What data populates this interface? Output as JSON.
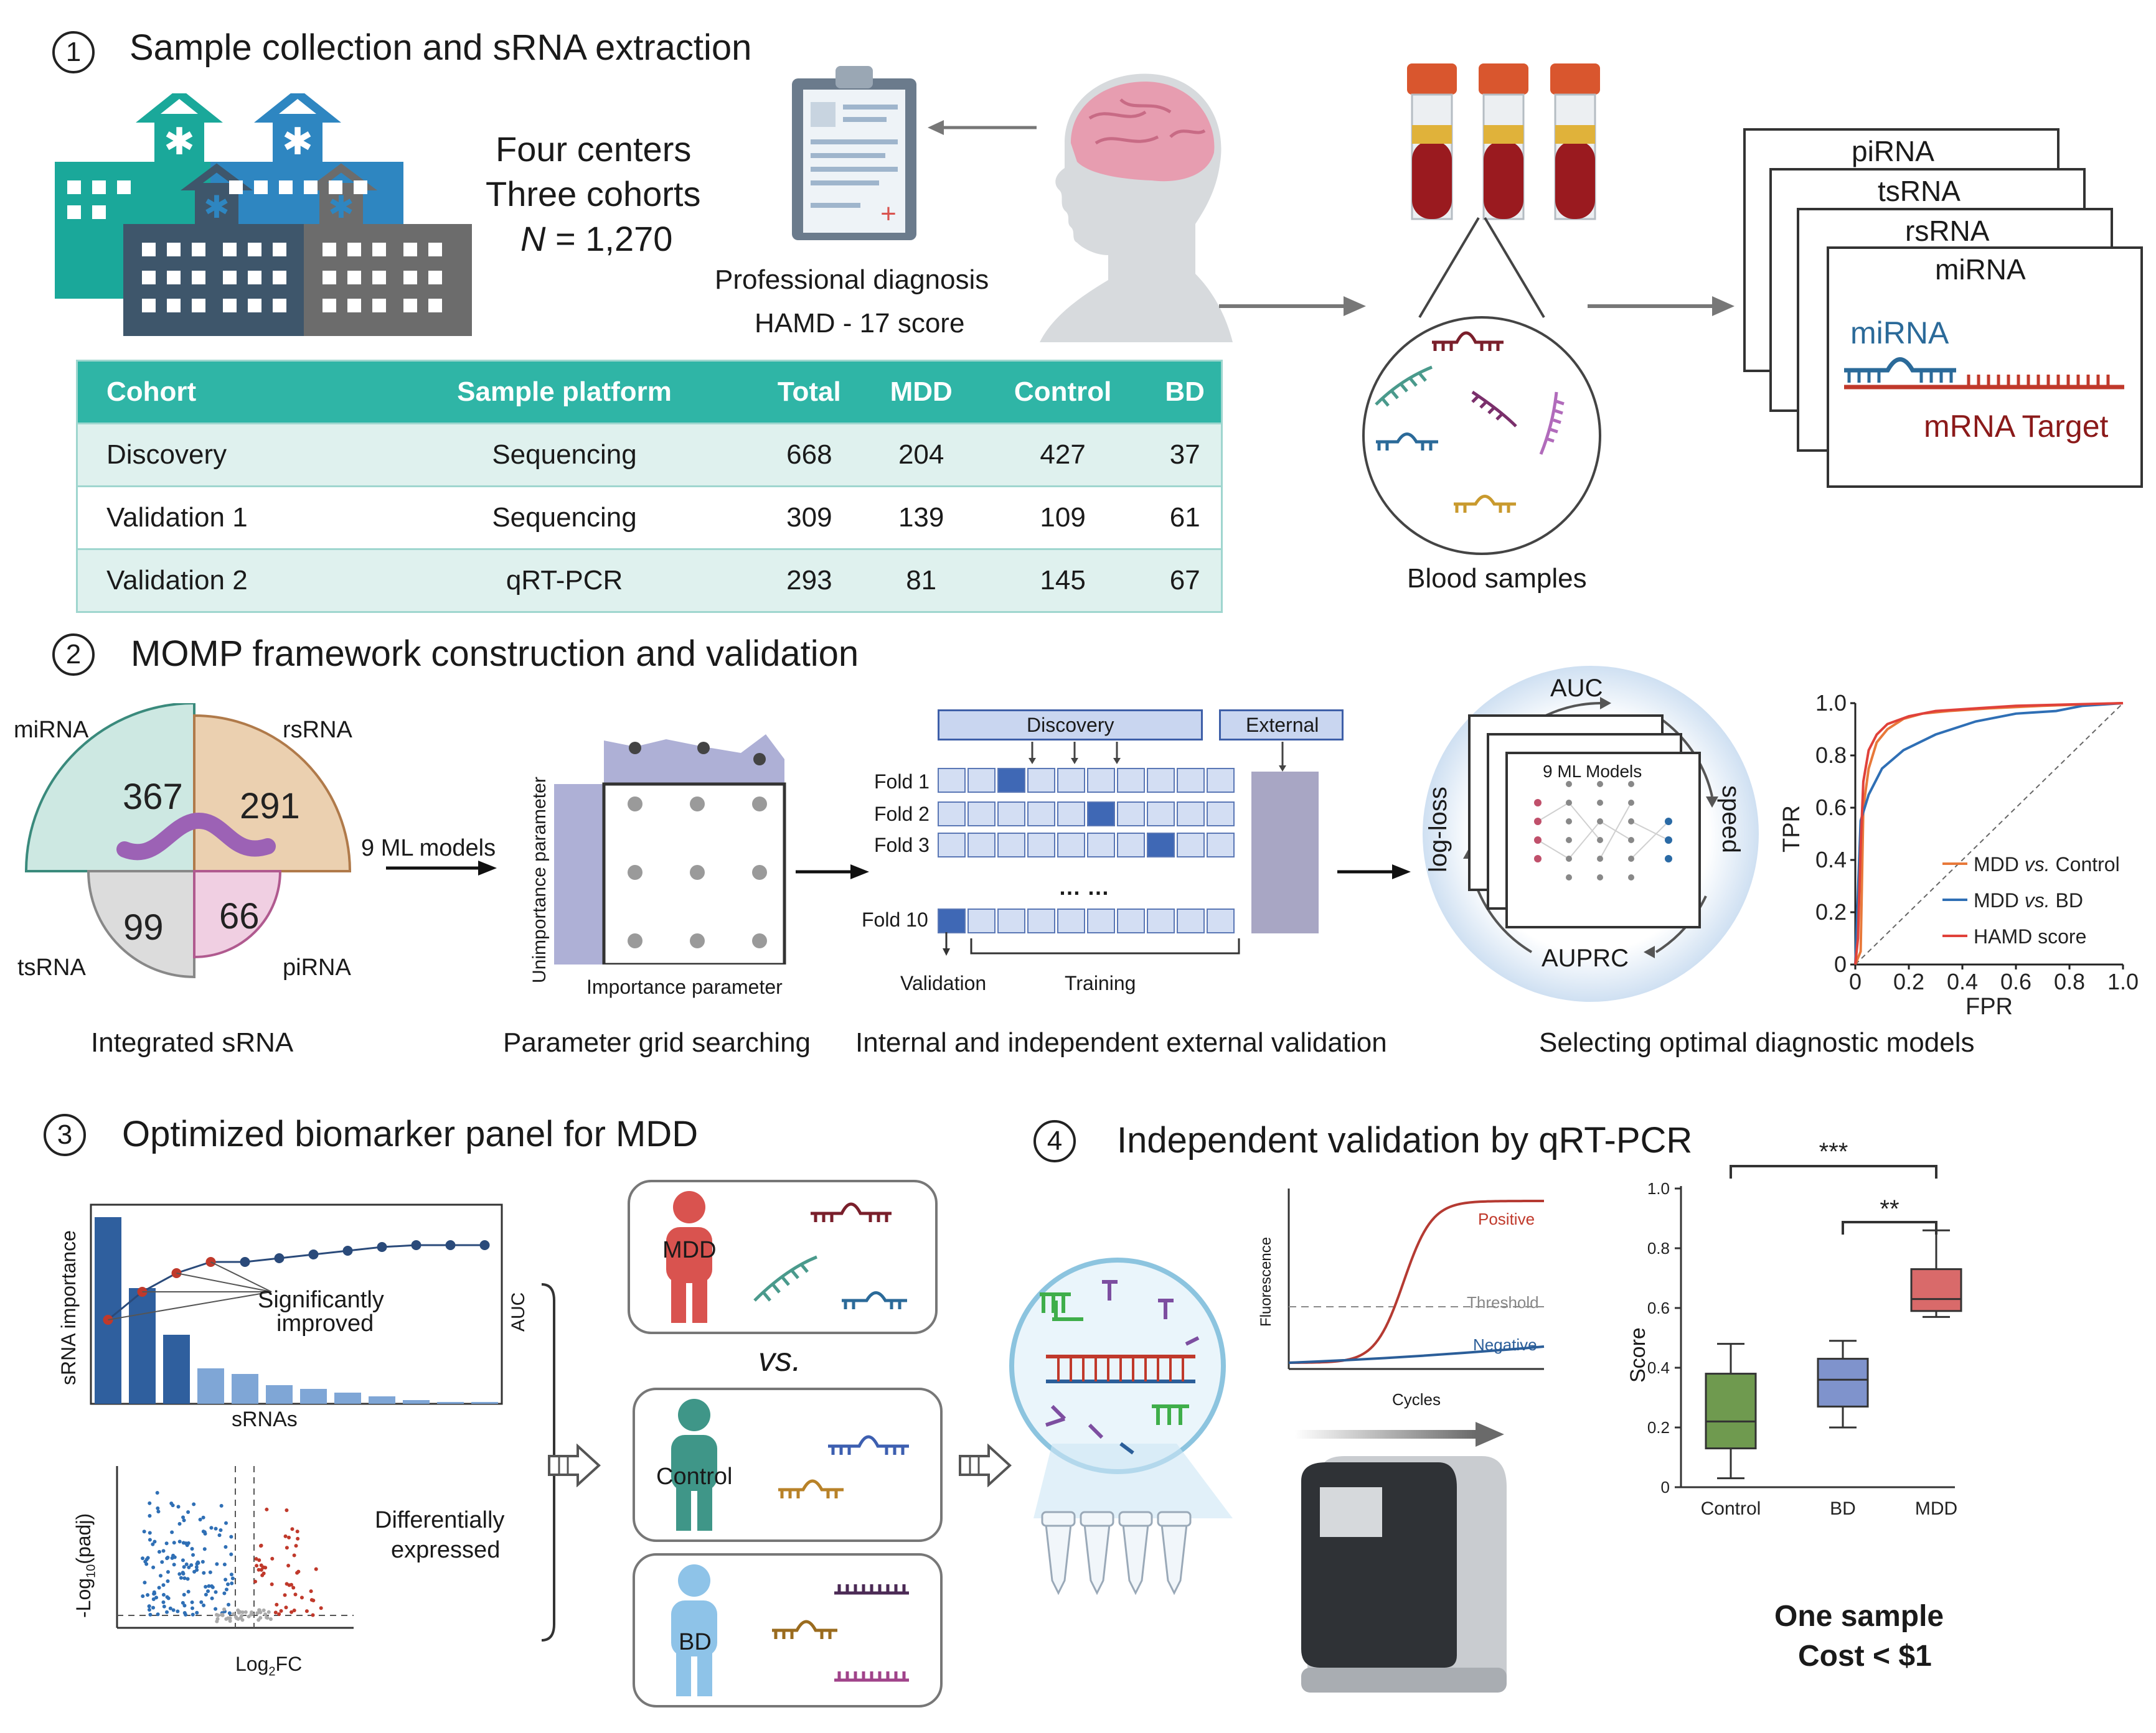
{
  "section1": {
    "num": "1",
    "title": "Sample collection and sRNA extraction",
    "centers_line1": "Four centers",
    "centers_line2": "Three cohorts",
    "n_symbol": "N",
    "n_value": " = 1,270",
    "diagnosis_line1": "Professional diagnosis",
    "diagnosis_line2": "HAMD - 17 score",
    "blood_label": "Blood samples",
    "rna_cards": [
      "piRNA",
      "tsRNA",
      "rsRNA",
      "miRNA"
    ],
    "mirna_label": "miRNA",
    "mrna_label": "mRNA Target",
    "table": {
      "headers": [
        "Cohort",
        "Sample platform",
        "Total",
        "MDD",
        "Control",
        "BD"
      ],
      "rows": [
        [
          "Discovery",
          "Sequencing",
          "668",
          "204",
          "427",
          "37"
        ],
        [
          "Validation 1",
          "Sequencing",
          "309",
          "139",
          "109",
          "61"
        ],
        [
          "Validation 2",
          "qRT-PCR",
          "293",
          "81",
          "145",
          "67"
        ]
      ]
    }
  },
  "section2": {
    "num": "2",
    "title": "MOMP framework construction and validation",
    "venn": {
      "labels": {
        "mirna": "miRNA",
        "rsrna": "rsRNA",
        "tsrna": "tsRNA",
        "pirna": "piRNA"
      },
      "values": {
        "mirna": "367",
        "rsrna": "291",
        "tsrna": "99",
        "pirna": "66"
      }
    },
    "caption_venn": "Integrated sRNA",
    "ml_models": "9 ML models",
    "grid_y": "Unimportance parameter",
    "grid_x": "Importance parameter",
    "caption_grid": "Parameter grid searching",
    "discovery": "Discovery",
    "external": "External",
    "folds": [
      "Fold 1",
      "Fold 2",
      "Fold 3",
      "Fold 10"
    ],
    "dots": "… …",
    "validation": "Validation",
    "training": "Training",
    "caption_cv": "Internal and independent external validation",
    "cycle": {
      "auc": "AUC",
      "speed": "speed",
      "auprc": "AUPRC",
      "logloss": "log-loss",
      "models": "9 ML Models"
    },
    "caption_select": "Selecting optimal diagnostic models",
    "roc": {
      "ylabel": "TPR",
      "xlabel": "FPR",
      "ticks": [
        "0",
        "0.2",
        "0.4",
        "0.6",
        "0.8",
        "1.0"
      ],
      "legend": [
        {
          "a": "MDD ",
          "b": "vs.",
          "c": " Control",
          "color": "#e8793a"
        },
        {
          "a": "MDD ",
          "b": "vs.",
          "c": " BD",
          "color": "#2f6fb5"
        },
        {
          "a": "HAMD score",
          "b": "",
          "c": "",
          "color": "#e0413a"
        }
      ]
    }
  },
  "section3": {
    "num": "3",
    "title": "Optimized biomarker panel for MDD",
    "importance_ylabel": "sRNA importance",
    "importance_xlabel": "sRNAs",
    "auc_label": "AUC",
    "sig_line1": "Significantly",
    "sig_line2": "improved",
    "volcano_xlabel_a": "Log",
    "volcano_xlabel_sub": "2",
    "volcano_xlabel_b": "FC",
    "volcano_ylabel_a": "-Log",
    "volcano_ylabel_sub": "10",
    "volcano_ylabel_b": "(padj)",
    "diff_line1": "Differentially",
    "diff_line2": "expressed",
    "groups": [
      "MDD",
      "Control",
      "BD"
    ],
    "vs": "vs."
  },
  "section4": {
    "num": "4",
    "title": "Independent validation by qRT-PCR",
    "pcr": {
      "positive": "Positive",
      "threshold": "Threshold",
      "negative": "Negative",
      "ylabel": "Fluorescence",
      "xlabel": "Cycles"
    },
    "boxplot": {
      "ylabel": "Score",
      "yticks": [
        "0",
        "0.2",
        "0.4",
        "0.6",
        "0.8",
        "1.0"
      ],
      "categories": [
        "Control",
        "BD",
        "MDD"
      ],
      "sig1": "***",
      "sig2": "**"
    },
    "cost_line1": "One sample",
    "cost_line2": "Cost < $1"
  },
  "chart_data": [
    {
      "type": "line",
      "xlabel": "FPR",
      "ylabel": "TPR",
      "xlim": [
        0,
        1
      ],
      "ylim": [
        0,
        1
      ],
      "series": [
        {
          "name": "MDD vs. Control",
          "x": [
            0,
            0.02,
            0.03,
            0.05,
            0.08,
            0.12,
            0.18,
            0.25,
            0.35,
            0.5,
            0.7,
            1.0
          ],
          "y": [
            0,
            0.05,
            0.6,
            0.75,
            0.85,
            0.9,
            0.94,
            0.96,
            0.97,
            0.98,
            0.99,
            1.0
          ]
        },
        {
          "name": "MDD vs. BD",
          "x": [
            0,
            0.02,
            0.05,
            0.1,
            0.18,
            0.3,
            0.45,
            0.6,
            0.75,
            0.85,
            1.0
          ],
          "y": [
            0,
            0.55,
            0.65,
            0.75,
            0.82,
            0.88,
            0.93,
            0.96,
            0.97,
            0.99,
            1.0
          ]
        },
        {
          "name": "HAMD score",
          "x": [
            0,
            0.01,
            0.02,
            0.03,
            0.05,
            0.08,
            0.12,
            0.2,
            0.3,
            0.45,
            0.6,
            1.0
          ],
          "y": [
            0,
            0.1,
            0.45,
            0.7,
            0.82,
            0.88,
            0.92,
            0.95,
            0.97,
            0.98,
            0.99,
            1.0
          ]
        }
      ]
    },
    {
      "type": "box",
      "ylabel": "Score",
      "ylim": [
        0,
        1.0
      ],
      "categories": [
        "Control",
        "BD",
        "MDD"
      ],
      "boxes": [
        {
          "whisker_low": 0.03,
          "q1": 0.13,
          "median": 0.22,
          "q3": 0.38,
          "whisker_high": 0.48,
          "color": "#6f9a4f"
        },
        {
          "whisker_low": 0.2,
          "q1": 0.27,
          "median": 0.36,
          "q3": 0.43,
          "whisker_high": 0.49,
          "color": "#7f93cc"
        },
        {
          "whisker_low": 0.57,
          "q1": 0.59,
          "median": 0.63,
          "q3": 0.73,
          "whisker_high": 0.86,
          "color": "#d96a6a"
        }
      ]
    },
    {
      "type": "bar",
      "ylabel": "sRNA importance",
      "xlabel": "sRNAs",
      "values": [
        1.0,
        0.62,
        0.37,
        0.19,
        0.16,
        0.1,
        0.08,
        0.06,
        0.04,
        0.02,
        0.01,
        0.01
      ],
      "auc_line": [
        0.35,
        0.5,
        0.6,
        0.66,
        0.66,
        0.68,
        0.7,
        0.72,
        0.74,
        0.75,
        0.75,
        0.75
      ]
    }
  ]
}
